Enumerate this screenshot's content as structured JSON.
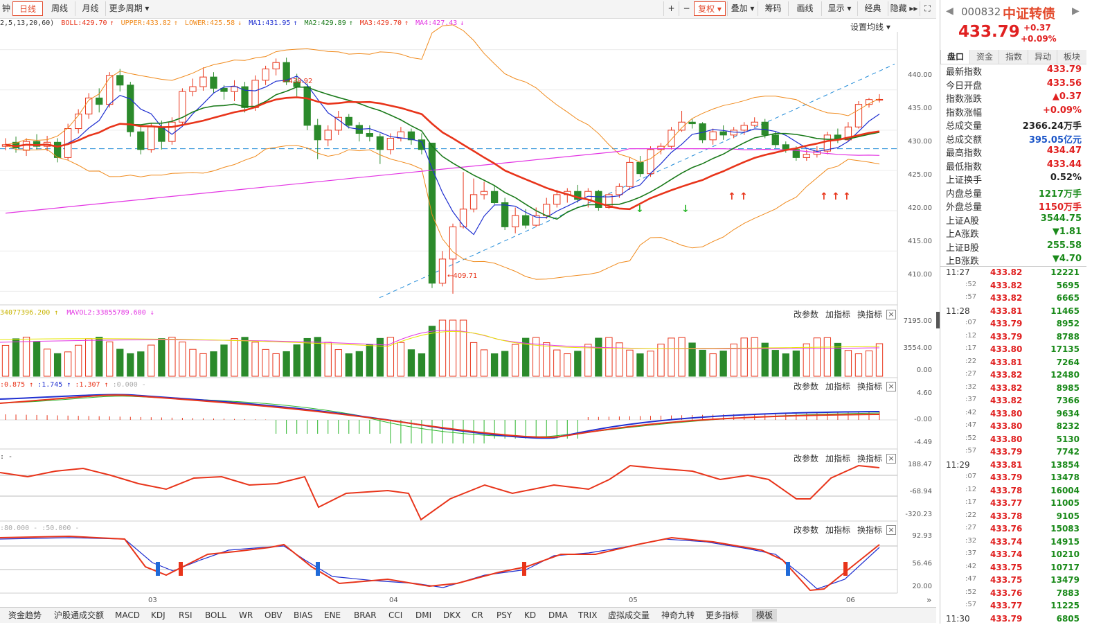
{
  "toolbar": {
    "left_items": [
      "钟",
      "日线",
      "周线",
      "月线",
      "更多周期 ▾"
    ],
    "right_items": [
      "+",
      "−",
      "复权 ▾",
      "叠加 ▾",
      "筹码",
      "画线",
      "显示 ▾",
      "经典",
      "隐藏 ▸▸",
      "⛶"
    ]
  },
  "indicators": {
    "boll_params": "2,5,13,20,60)",
    "boll": "BOLL:429.70",
    "upper": "UPPER:433.82",
    "lower": "LOWER:425.58",
    "ma1": "MA1:431.95",
    "ma2": "MA2:429.89",
    "ma3": "MA3:429.70",
    "ma4": "MA4:427.43",
    "set_ma": "设置均线 ▾",
    "colors": {
      "boll": "#e8341a",
      "upper": "#f08a1c",
      "lower": "#f08a1c",
      "ma1": "#1f2fd0",
      "ma2": "#1a7a1a",
      "ma3": "#e8341a",
      "ma4": "#e335e3"
    }
  },
  "price_axis": [
    "440.00",
    "435.00",
    "430.00",
    "425.00",
    "420.00",
    "415.00",
    "410.00"
  ],
  "annotations": {
    "high": "438.92",
    "low": "409.71"
  },
  "volume_pane": {
    "label1": "34077396.200 ↑",
    "label2": "MAVOL2:33855789.600 ↓",
    "axis": [
      "7195.00",
      "3554.00",
      "0.00"
    ]
  },
  "macd_pane": {
    "labels": [
      ":0.875 ↑",
      ":1.745 ↑",
      ":1.307 ↑",
      ":0.000 -"
    ],
    "axis": [
      "4.60",
      "-0.00",
      "-4.49"
    ]
  },
  "cci_pane": {
    "labels": [
      ": -"
    ],
    "axis": [
      "188.47",
      "-68.94",
      "-320.23"
    ]
  },
  "kdj_pane": {
    "labels": [
      ":80.000 -",
      ":50.000 -"
    ],
    "axis": [
      "92.93",
      "56.46",
      "20.00"
    ]
  },
  "pane_tools": [
    "改参数",
    "加指标",
    "换指标"
  ],
  "x_axis": [
    "03",
    "04",
    "05",
    "06"
  ],
  "bottom_tabs": [
    "资金趋势",
    "沪股通成交额",
    "MACD",
    "KDJ",
    "RSI",
    "BOLL",
    "WR",
    "OBV",
    "BIAS",
    "ENE",
    "BRAR",
    "CCI",
    "DMI",
    "DKX",
    "CR",
    "PSY",
    "KD",
    "DMA",
    "TRIX",
    "虚拟成交量",
    "神奇九转",
    "更多指标",
    "模板"
  ],
  "quote": {
    "code": "000832",
    "name": "中证转债",
    "price": "433.79",
    "change": "+0.37",
    "change_pct": "+0.09%",
    "tabs": [
      "盘口",
      "资金",
      "指数",
      "异动",
      "板块"
    ],
    "stats": [
      {
        "k": "最新指数",
        "v": "433.79",
        "c": "#e02020"
      },
      {
        "k": "今日开盘",
        "v": "433.56",
        "c": "#e02020"
      },
      {
        "k": "指数涨跌",
        "v": "▲0.37",
        "c": "#e02020"
      },
      {
        "k": "指数涨幅",
        "v": "+0.09%",
        "c": "#e02020"
      },
      {
        "k": "总成交量",
        "v": "2366.24万手",
        "c": "#222"
      },
      {
        "k": "总成交额",
        "v": "395.05亿元",
        "c": "#1a55c8"
      },
      {
        "k": "最高指数",
        "v": "434.47",
        "c": "#e02020"
      },
      {
        "k": "最低指数",
        "v": "433.44",
        "c": "#e02020"
      },
      {
        "k": "上证换手",
        "v": "0.52%",
        "c": "#222"
      },
      {
        "k": "内盘总量",
        "v": "1217万手",
        "c": "#1a8a1a"
      },
      {
        "k": "外盘总量",
        "v": "1150万手",
        "c": "#e02020"
      },
      {
        "k": "上证A股",
        "v": "3544.75",
        "c": "#1a8a1a"
      },
      {
        "k": "上A涨跌",
        "v": "▼1.81",
        "c": "#1a8a1a"
      },
      {
        "k": "上证B股",
        "v": "255.58",
        "c": "#1a8a1a"
      },
      {
        "k": "上B涨跌",
        "v": "▼4.70",
        "c": "#1a8a1a"
      }
    ],
    "ticks": [
      {
        "t": "11:27",
        "p": "433.82",
        "v": "12221"
      },
      {
        "t": ":52",
        "p": "433.82",
        "v": "5695"
      },
      {
        "t": ":57",
        "p": "433.82",
        "v": "6665"
      },
      {
        "t": "11:28",
        "p": "433.81",
        "v": "11465"
      },
      {
        "t": ":07",
        "p": "433.79",
        "v": "8952"
      },
      {
        "t": ":12",
        "p": "433.79",
        "v": "8788"
      },
      {
        "t": ":17",
        "p": "433.80",
        "v": "17135"
      },
      {
        "t": ":22",
        "p": "433.81",
        "v": "7264"
      },
      {
        "t": ":27",
        "p": "433.82",
        "v": "12480"
      },
      {
        "t": ":32",
        "p": "433.82",
        "v": "8985"
      },
      {
        "t": ":37",
        "p": "433.82",
        "v": "7366"
      },
      {
        "t": ":42",
        "p": "433.80",
        "v": "9634"
      },
      {
        "t": ":47",
        "p": "433.80",
        "v": "8232"
      },
      {
        "t": ":52",
        "p": "433.80",
        "v": "5130"
      },
      {
        "t": ":57",
        "p": "433.79",
        "v": "7742"
      },
      {
        "t": "11:29",
        "p": "433.81",
        "v": "13854"
      },
      {
        "t": ":07",
        "p": "433.79",
        "v": "13478"
      },
      {
        "t": ":12",
        "p": "433.78",
        "v": "16004"
      },
      {
        "t": ":17",
        "p": "433.77",
        "v": "11005"
      },
      {
        "t": ":22",
        "p": "433.78",
        "v": "9105"
      },
      {
        "t": ":27",
        "p": "433.76",
        "v": "15083"
      },
      {
        "t": ":32",
        "p": "433.74",
        "v": "14915"
      },
      {
        "t": ":37",
        "p": "433.74",
        "v": "10210"
      },
      {
        "t": ":42",
        "p": "433.75",
        "v": "10717"
      },
      {
        "t": ":47",
        "p": "433.75",
        "v": "13479"
      },
      {
        "t": ":52",
        "p": "433.76",
        "v": "7883"
      },
      {
        "t": ":57",
        "p": "433.77",
        "v": "11225"
      },
      {
        "t": "11:30",
        "p": "433.79",
        "v": "6805"
      }
    ]
  },
  "chart_data": {
    "type": "candlestick",
    "ylim": [
      409,
      441
    ],
    "candles": [
      [
        428.0,
        428.2,
        429.0,
        427.5
      ],
      [
        428.5,
        427.8,
        429.2,
        427.2
      ],
      [
        427.5,
        428.6,
        429.0,
        426.8
      ],
      [
        428.6,
        428.0,
        429.5,
        427.6
      ],
      [
        428.0,
        428.5,
        429.3,
        427.4
      ],
      [
        428.5,
        426.6,
        429.0,
        426.0
      ],
      [
        426.6,
        430.2,
        430.8,
        426.3
      ],
      [
        430.2,
        432.0,
        432.6,
        429.6
      ],
      [
        432.0,
        434.0,
        434.6,
        431.4
      ],
      [
        434.0,
        433.2,
        435.2,
        432.2
      ],
      [
        433.2,
        436.8,
        437.2,
        432.8
      ],
      [
        436.8,
        435.6,
        437.6,
        434.8
      ],
      [
        435.6,
        429.8,
        436.0,
        429.2
      ],
      [
        429.8,
        427.6,
        430.6,
        427.0
      ],
      [
        427.6,
        430.4,
        430.9,
        427.2
      ],
      [
        430.4,
        428.6,
        431.2,
        427.6
      ],
      [
        428.6,
        431.0,
        431.6,
        428.2
      ],
      [
        431.0,
        434.8,
        435.2,
        430.6
      ],
      [
        434.8,
        435.4,
        436.4,
        434.2
      ],
      [
        435.4,
        436.6,
        437.8,
        434.9
      ],
      [
        436.6,
        435.2,
        437.2,
        434.6
      ],
      [
        435.2,
        434.8,
        435.6,
        433.8
      ],
      [
        434.8,
        435.4,
        436.2,
        433.6
      ],
      [
        435.4,
        432.8,
        436.0,
        432.2
      ],
      [
        432.8,
        436.2,
        436.8,
        432.4
      ],
      [
        436.2,
        437.6,
        438.0,
        435.6
      ],
      [
        437.6,
        438.4,
        438.9,
        436.8
      ],
      [
        438.4,
        436.0,
        439.0,
        435.6
      ],
      [
        436.0,
        435.4,
        437.0,
        434.2
      ],
      [
        435.4,
        430.6,
        435.8,
        430.0
      ],
      [
        430.6,
        428.8,
        431.4,
        426.4
      ],
      [
        428.8,
        430.0,
        430.6,
        428.0
      ],
      [
        430.0,
        431.6,
        432.4,
        429.4
      ],
      [
        431.6,
        430.6,
        432.0,
        430.2
      ],
      [
        430.6,
        429.6,
        431.0,
        428.6
      ],
      [
        429.6,
        429.2,
        430.6,
        428.6
      ],
      [
        429.2,
        427.6,
        429.6,
        425.8
      ],
      [
        427.6,
        429.0,
        429.6,
        427.0
      ],
      [
        429.0,
        429.8,
        430.4,
        428.6
      ],
      [
        429.8,
        428.8,
        430.2,
        428.2
      ],
      [
        428.8,
        427.6,
        429.6,
        427.0
      ],
      [
        428.4,
        411.0,
        428.4,
        410.4
      ],
      [
        411.0,
        414.0,
        415.0,
        410.6
      ],
      [
        414.0,
        418.0,
        418.4,
        409.7
      ],
      [
        418.0,
        420.2,
        424.8,
        417.8
      ],
      [
        420.2,
        422.0,
        424.0,
        419.8
      ],
      [
        422.0,
        422.4,
        423.6,
        421.4
      ],
      [
        422.4,
        421.0,
        423.2,
        420.8
      ],
      [
        421.0,
        418.0,
        421.6,
        417.6
      ],
      [
        418.0,
        419.4,
        420.4,
        417.2
      ],
      [
        419.4,
        418.2,
        420.2,
        417.8
      ],
      [
        418.2,
        419.4,
        420.4,
        418.0
      ],
      [
        419.4,
        420.8,
        421.6,
        419.0
      ],
      [
        420.8,
        422.0,
        422.6,
        420.4
      ],
      [
        422.0,
        422.4,
        422.8,
        421.0
      ],
      [
        422.4,
        421.4,
        423.2,
        421.0
      ],
      [
        421.4,
        422.4,
        422.8,
        420.4
      ],
      [
        422.4,
        420.4,
        422.6,
        420.0
      ],
      [
        420.4,
        422.0,
        422.2,
        420.2
      ],
      [
        422.0,
        423.0,
        423.4,
        421.6
      ],
      [
        423.0,
        426.0,
        426.6,
        422.6
      ],
      [
        426.0,
        424.6,
        426.8,
        424.2
      ],
      [
        424.6,
        427.6,
        428.0,
        424.2
      ],
      [
        427.6,
        428.0,
        428.4,
        427.0
      ],
      [
        428.0,
        430.0,
        430.4,
        427.6
      ],
      [
        430.0,
        431.0,
        432.4,
        429.8
      ],
      [
        431.0,
        430.8,
        431.4,
        430.2
      ],
      [
        430.8,
        428.8,
        431.0,
        428.4
      ],
      [
        428.8,
        429.8,
        430.2,
        428.2
      ],
      [
        429.8,
        429.4,
        430.6,
        428.8
      ],
      [
        429.4,
        430.0,
        430.4,
        429.0
      ],
      [
        430.0,
        430.6,
        431.0,
        429.4
      ],
      [
        430.6,
        431.0,
        431.6,
        430.4
      ],
      [
        431.0,
        429.4,
        431.4,
        429.0
      ],
      [
        429.4,
        428.2,
        429.8,
        427.8
      ],
      [
        428.2,
        427.6,
        428.6,
        427.2
      ],
      [
        427.6,
        426.6,
        428.0,
        426.2
      ],
      [
        426.6,
        427.0,
        427.6,
        426.2
      ],
      [
        427.0,
        427.4,
        428.0,
        426.6
      ],
      [
        427.4,
        429.4,
        429.8,
        427.0
      ],
      [
        429.4,
        428.8,
        430.2,
        428.4
      ],
      [
        428.8,
        430.4,
        431.0,
        428.6
      ],
      [
        430.4,
        433.2,
        433.6,
        430.2
      ],
      [
        433.2,
        433.8,
        434.0,
        432.8
      ],
      [
        433.79,
        433.82,
        434.47,
        433.44
      ]
    ]
  }
}
